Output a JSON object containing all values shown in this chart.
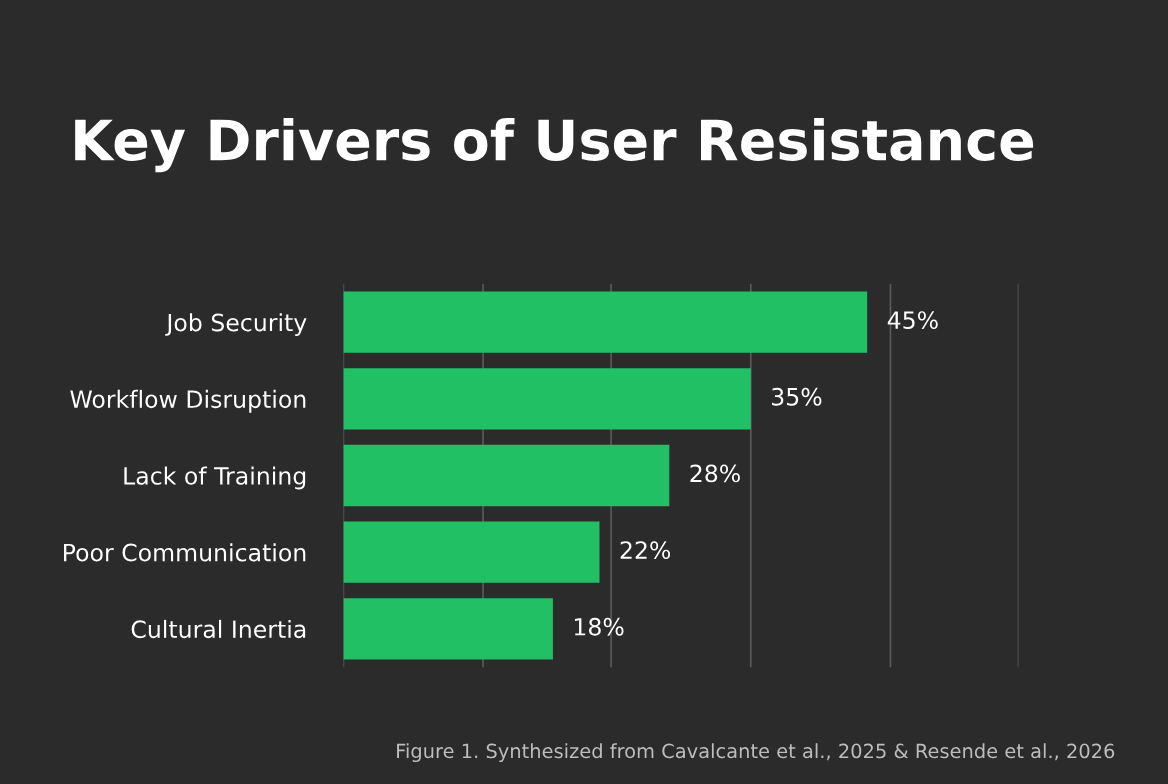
{
  "chart_data": {
    "type": "bar",
    "orientation": "horizontal",
    "title": "Key Drivers of User Resistance",
    "categories": [
      "Job Security",
      "Workflow Disruption",
      "Lack of Training",
      "Poor Communication",
      "Cultural Inertia"
    ],
    "values": [
      45,
      35,
      28,
      22,
      18
    ],
    "color": "#22c065",
    "data_labels": true,
    "value_labels": [
      "45%",
      "35%",
      "28%",
      "22%",
      "18%"
    ],
    "xlim": [
      0,
      58
    ],
    "xticks": [
      {
        "value": 0,
        "label": null
      },
      {
        "value": 12,
        "label": null
      },
      {
        "value": 23,
        "label": null
      },
      {
        "value": 35,
        "label": null
      },
      {
        "value": 47,
        "label": null
      },
      {
        "value": 58,
        "label": null
      }
    ],
    "grid": "x",
    "tick_labels": "y",
    "legend": false,
    "annotations": [
      "Figure 1. Synthesized from Cavalcante et al., 2025 & Resende et al., 2026"
    ]
  }
}
